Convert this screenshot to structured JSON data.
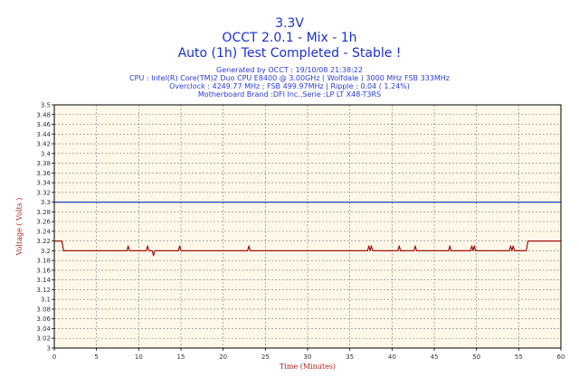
{
  "header": {
    "title": "3.3V",
    "subtitle": "OCCT 2.0.1 - Mix - 1h",
    "status": "Auto (1h) Test Completed - Stable !"
  },
  "info": {
    "generated": "Generated by OCCT : 19/10/08 21:38:22",
    "cpu": "CPU : Intel(R) Core(TM)2 Duo CPU E8400 @ 3.00GHz ( Wolfdale ) 3000 MHz FSB 333MHz",
    "overclock": "Overclock : 4249.77 MHz ; FSB 499.97MHz | Ripple : 0.04 ( 1.24%)",
    "motherboard": "Motherboard Brand :DFI Inc.,Serie :LP LT X48-T3RS"
  },
  "chart_data": {
    "type": "line",
    "xlabel": "Time (Minutes)",
    "ylabel": "Voltage ( Volts )",
    "xlim": [
      0,
      60
    ],
    "ylim": [
      3.0,
      3.5
    ],
    "xticks": [
      "0",
      "5",
      "10",
      "15",
      "20",
      "25",
      "30",
      "35",
      "40",
      "45",
      "50",
      "55",
      "60"
    ],
    "yticks": [
      "3",
      "3.02",
      "3.04",
      "3.06",
      "3.08",
      "3.1",
      "3.12",
      "3.14",
      "3.16",
      "3.18",
      "3.2",
      "3.22",
      "3.24",
      "3.26",
      "3.28",
      "3.3",
      "3.32",
      "3.34",
      "3.36",
      "3.38",
      "3.4",
      "3.42",
      "3.44",
      "3.46",
      "3.48",
      "3.5"
    ],
    "grid": true,
    "series": [
      {
        "name": "",
        "color": "#1f3fbf",
        "x": [
          0,
          60
        ],
        "y": [
          3.3,
          3.3
        ]
      },
      {
        "name": "",
        "color": "#a01010",
        "x": [
          0,
          0.9,
          1.1,
          8.6,
          8.75,
          8.9,
          10.9,
          11.05,
          11.2,
          11.6,
          11.75,
          11.9,
          14.7,
          14.85,
          15.0,
          22.9,
          23.05,
          23.2,
          37.1,
          37.25,
          37.4,
          37.55,
          37.7,
          40.7,
          40.85,
          41.0,
          42.6,
          42.75,
          42.9,
          46.7,
          46.85,
          47.0,
          49.3,
          49.45,
          49.6,
          49.75,
          49.9,
          53.9,
          54.05,
          54.2,
          54.35,
          54.5,
          55.9,
          56.1,
          60
        ],
        "y": [
          3.22,
          3.22,
          3.2,
          3.2,
          3.21,
          3.2,
          3.2,
          3.21,
          3.2,
          3.2,
          3.19,
          3.2,
          3.2,
          3.21,
          3.2,
          3.2,
          3.21,
          3.2,
          3.2,
          3.21,
          3.2,
          3.21,
          3.2,
          3.2,
          3.21,
          3.2,
          3.2,
          3.21,
          3.2,
          3.2,
          3.21,
          3.2,
          3.2,
          3.21,
          3.2,
          3.21,
          3.2,
          3.2,
          3.21,
          3.2,
          3.21,
          3.2,
          3.2,
          3.22,
          3.22
        ]
      }
    ],
    "colors": {
      "plot_bg": "#fff8e8",
      "grid": "#7a7a7a",
      "border": "#000000",
      "title": "#1d2fd0"
    }
  }
}
